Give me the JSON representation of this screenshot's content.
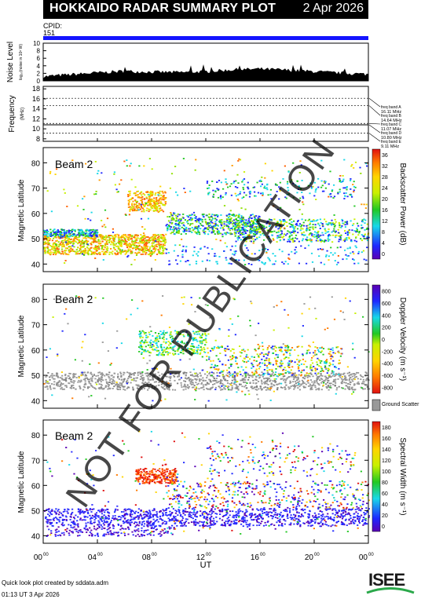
{
  "title": "HOKKAIDO RADAR SUMMARY PLOT",
  "date": "2 Apr 2026",
  "cpid_label": "CPID:",
  "cpid_value": "151",
  "noise": {
    "ylabel": "Noise Level",
    "ylabel_small": "log₁₀(noise in 10⁶ W)",
    "ticks": [
      "10",
      "8",
      "6",
      "4",
      "2",
      "0"
    ],
    "ylim": [
      0,
      10
    ]
  },
  "frequency": {
    "ylabel": "Frequency",
    "unit": "(MHz)",
    "ticks": [
      "18",
      "16",
      "14",
      "12",
      "10",
      "8"
    ],
    "ylim": [
      7.5,
      18.5
    ],
    "bands": [
      {
        "label": "freq band A",
        "value": "16.11 MHz",
        "mhz": 16.11
      },
      {
        "label": "freq band B",
        "value": "14.64 MHz",
        "mhz": 14.64
      },
      {
        "label": "freq band C",
        "value": "11.07 MHz",
        "mhz": 11.07
      },
      {
        "label": "freq band D",
        "value": "10.80 MHz",
        "mhz": 10.8
      },
      {
        "label": "freq band E",
        "value": "9.11 MHz",
        "mhz": 9.11
      }
    ]
  },
  "panels": [
    {
      "beam": "Beam  2",
      "ylabel": "Magnetic Latitude",
      "cbar_label": "Backscatter Power (dB)",
      "cbar_ticks": [
        "36",
        "32",
        "28",
        "24",
        "20",
        "16",
        "12",
        "8",
        "4",
        "0"
      ]
    },
    {
      "beam": "Beam  2",
      "ylabel": "Magnetic Latitude",
      "cbar_label": "Doppler Velocity (m s⁻¹)",
      "cbar_ticks": [
        "800",
        "600",
        "400",
        "200",
        "0",
        "-200",
        "-400",
        "-600",
        "-800"
      ],
      "ground_label": "Ground Scatter"
    },
    {
      "beam": "Beam  2",
      "ylabel": "Magnetic Latitude",
      "cbar_label": "Spectral Width (m s⁻¹)",
      "cbar_ticks": [
        "180",
        "160",
        "140",
        "120",
        "100",
        "80",
        "60",
        "40",
        "20",
        "0"
      ]
    }
  ],
  "lat_ticks": [
    "80",
    "70",
    "60",
    "50",
    "40"
  ],
  "lat_range": [
    37,
    86
  ],
  "time_ticks": [
    "00",
    "04",
    "08",
    "12",
    "16",
    "20",
    "00"
  ],
  "time_sup": "00",
  "xlabel": "UT",
  "watermark": "NOT FOR PUBLICATION",
  "caption_line1": "Quick look plot created by sddata.adm",
  "caption_line2": "01:13 UT  3 Apr 2026",
  "logo_text": "ISEE",
  "colors": {
    "cpid": "#1414ff",
    "ground": "#999999"
  },
  "chart_data": [
    {
      "type": "area",
      "title": "Noise Level",
      "x_unit": "UT hour",
      "x": [
        0,
        2,
        4,
        6,
        8,
        10,
        12,
        14,
        16,
        18,
        20,
        22,
        24
      ],
      "values": [
        1.0,
        1.5,
        2.0,
        2.4,
        2.2,
        2.1,
        2.3,
        2.8,
        3.0,
        2.7,
        2.3,
        1.9,
        1.6
      ]
    },
    {
      "type": "line",
      "title": "Frequency",
      "series": [
        {
          "values": [
            16.11,
            14.64,
            11.07,
            10.8,
            9.11
          ]
        }
      ]
    },
    {
      "type": "heatmap",
      "title": "Backscatter Power",
      "zlim": [
        0,
        36
      ],
      "description_regions": [
        {
          "t": [
            0,
            8
          ],
          "lat": [
            44,
            52
          ],
          "value": 24
        },
        {
          "t": [
            6,
            9
          ],
          "lat": [
            61,
            69
          ],
          "value": 28
        },
        {
          "t": [
            8,
            24
          ],
          "lat": [
            48,
            58
          ],
          "value": 12
        }
      ]
    },
    {
      "type": "heatmap",
      "title": "Doppler Velocity",
      "zlim": [
        -800,
        800
      ],
      "description_regions": [
        {
          "t": [
            0,
            24
          ],
          "lat": [
            45,
            51
          ],
          "value": "ground"
        },
        {
          "t": [
            7,
            12
          ],
          "lat": [
            58,
            68
          ],
          "value": -100
        },
        {
          "t": [
            12,
            22
          ],
          "lat": [
            50,
            62
          ],
          "value": -200
        }
      ]
    },
    {
      "type": "heatmap",
      "title": "Spectral Width",
      "zlim": [
        0,
        180
      ],
      "description_regions": [
        {
          "t": [
            0,
            24
          ],
          "lat": [
            44,
            51
          ],
          "value": 20
        },
        {
          "t": [
            7,
            10
          ],
          "lat": [
            61,
            67
          ],
          "value": 160
        }
      ]
    }
  ]
}
